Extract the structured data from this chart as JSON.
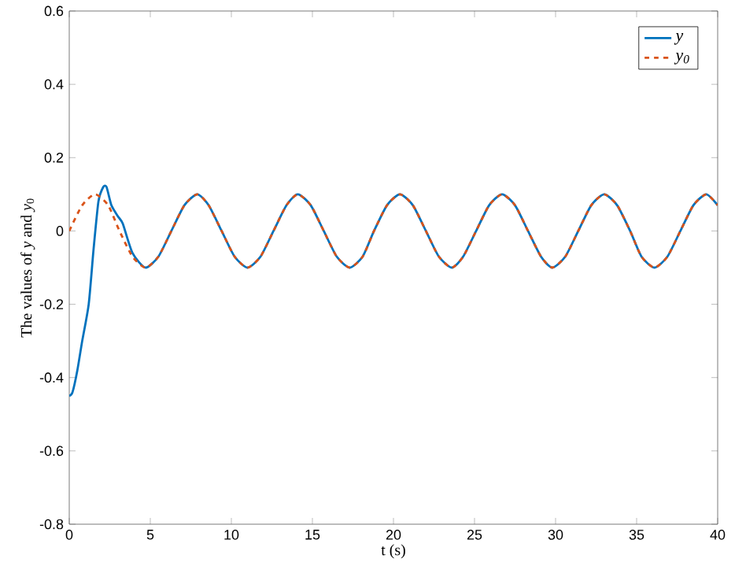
{
  "chart_data": {
    "type": "line",
    "xlabel": "t (s)",
    "ylabel": "The values of *y* and *y*$_{0}$",
    "xlim": [
      0,
      40
    ],
    "ylim": [
      -0.8,
      0.6
    ],
    "xticks": [
      0,
      5,
      10,
      15,
      20,
      25,
      30,
      35,
      40
    ],
    "yticks": [
      -0.8,
      -0.6,
      -0.4,
      -0.2,
      0,
      0.2,
      0.4,
      0.6
    ],
    "grid": false,
    "legend": "top right",
    "marker": "none",
    "series": [
      {
        "name": "*y*",
        "color": "#0072bd",
        "line_style": "solid",
        "x": [
          0,
          0.2,
          0.5,
          0.8,
          1.2,
          1.5,
          1.8,
          2.1,
          2.3,
          2.6,
          3.0,
          3.3,
          3.9,
          4.7,
          5.5,
          6.3,
          7.1,
          7.9,
          8.6,
          9.4,
          10.2,
          11.0,
          11.8,
          12.6,
          13.4,
          14.1,
          14.9,
          15.7,
          16.5,
          17.3,
          18.1,
          18.8,
          19.6,
          20.4,
          21.2,
          22.0,
          22.8,
          23.6,
          24.3,
          25.1,
          25.9,
          26.7,
          27.5,
          28.3,
          29.1,
          29.8,
          30.6,
          31.4,
          32.2,
          33.0,
          33.8,
          34.6,
          35.3,
          36.1,
          36.9,
          37.7,
          38.5,
          39.3,
          40
        ],
        "values": [
          -0.45,
          -0.44,
          -0.38,
          -0.3,
          -0.2,
          -0.05,
          0.08,
          0.12,
          0.12,
          0.07,
          0.04,
          0.02,
          -0.06,
          -0.1,
          -0.07,
          0,
          0.07,
          0.1,
          0.07,
          0,
          -0.07,
          -0.1,
          -0.07,
          0,
          0.07,
          0.1,
          0.07,
          0,
          -0.07,
          -0.1,
          -0.07,
          0,
          0.07,
          0.1,
          0.07,
          0,
          -0.07,
          -0.1,
          -0.07,
          0,
          0.07,
          0.1,
          0.07,
          0,
          -0.07,
          -0.1,
          -0.07,
          0,
          0.07,
          0.1,
          0.07,
          0,
          -0.07,
          -0.1,
          -0.07,
          0,
          0.07,
          0.1,
          0.07
        ]
      },
      {
        "name": "*y*$_{0}$",
        "color": "#d95319",
        "line_style": "dashed",
        "x": [
          0,
          0.8,
          1.6,
          2.4,
          3.1,
          3.9,
          4.7,
          5.5,
          6.3,
          7.1,
          7.9,
          8.6,
          9.4,
          10.2,
          11.0,
          11.8,
          12.6,
          13.4,
          14.1,
          14.9,
          15.7,
          16.5,
          17.3,
          18.1,
          18.8,
          19.6,
          20.4,
          21.2,
          22.0,
          22.8,
          23.6,
          24.3,
          25.1,
          25.9,
          26.7,
          27.5,
          28.3,
          29.1,
          29.8,
          30.6,
          31.4,
          32.2,
          33.0,
          33.8,
          34.6,
          35.3,
          36.1,
          36.9,
          37.7,
          38.5,
          39.3,
          40
        ],
        "values": [
          0,
          0.07,
          0.1,
          0.07,
          0,
          -0.07,
          -0.1,
          -0.07,
          0,
          0.07,
          0.1,
          0.07,
          0,
          -0.07,
          -0.1,
          -0.07,
          0,
          0.07,
          0.1,
          0.07,
          0,
          -0.07,
          -0.1,
          -0.07,
          0,
          0.07,
          0.1,
          0.07,
          0,
          -0.07,
          -0.1,
          -0.07,
          0,
          0.07,
          0.1,
          0.07,
          0,
          -0.07,
          -0.1,
          -0.07,
          0,
          0.07,
          0.1,
          0.07,
          0,
          -0.07,
          -0.1,
          -0.07,
          0,
          0.07,
          0.1,
          0.07
        ]
      }
    ]
  }
}
